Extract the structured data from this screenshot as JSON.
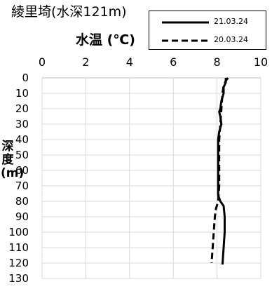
{
  "chart_data": {
    "type": "line",
    "title": "綾里埼(水深121m)",
    "xlabel": "水温 (℃)",
    "ylabel": "深度(m)",
    "xlim": [
      0,
      10
    ],
    "ylim": [
      0,
      130
    ],
    "x_ticks": [
      "0",
      "2",
      "4",
      "6",
      "8",
      "10"
    ],
    "y_ticks": [
      "0",
      "10",
      "20",
      "30",
      "40",
      "50",
      "60",
      "70",
      "80",
      "90",
      "100",
      "110",
      "120",
      "130"
    ],
    "y_inverted": true,
    "x_axis_position": "top",
    "grid": true,
    "legend_position": "top-right",
    "series": [
      {
        "name": "21.03.24",
        "line_style": "solid",
        "color": "#000000",
        "points": [
          [
            8.4,
            0
          ],
          [
            8.4,
            3
          ],
          [
            8.3,
            6
          ],
          [
            8.3,
            10
          ],
          [
            8.2,
            15
          ],
          [
            8.15,
            20
          ],
          [
            8.1,
            22
          ],
          [
            8.15,
            25
          ],
          [
            8.2,
            30
          ],
          [
            8.1,
            35
          ],
          [
            8.05,
            40
          ],
          [
            8.05,
            50
          ],
          [
            8.05,
            60
          ],
          [
            8.05,
            70
          ],
          [
            8.05,
            76
          ],
          [
            8.15,
            80
          ],
          [
            8.3,
            83
          ],
          [
            8.35,
            90
          ],
          [
            8.35,
            100
          ],
          [
            8.3,
            110
          ],
          [
            8.25,
            121
          ]
        ]
      },
      {
        "name": "20.03.24",
        "line_style": "dashed",
        "color": "#000000",
        "points": [
          [
            8.5,
            0
          ],
          [
            8.4,
            2
          ],
          [
            8.3,
            5
          ],
          [
            8.25,
            10
          ],
          [
            8.2,
            20
          ],
          [
            8.15,
            30
          ],
          [
            8.1,
            40
          ],
          [
            8.1,
            50
          ],
          [
            8.1,
            60
          ],
          [
            8.1,
            70
          ],
          [
            8.05,
            80
          ],
          [
            7.95,
            85
          ],
          [
            7.9,
            90
          ],
          [
            7.85,
            100
          ],
          [
            7.8,
            110
          ],
          [
            7.75,
            120
          ]
        ]
      }
    ]
  }
}
